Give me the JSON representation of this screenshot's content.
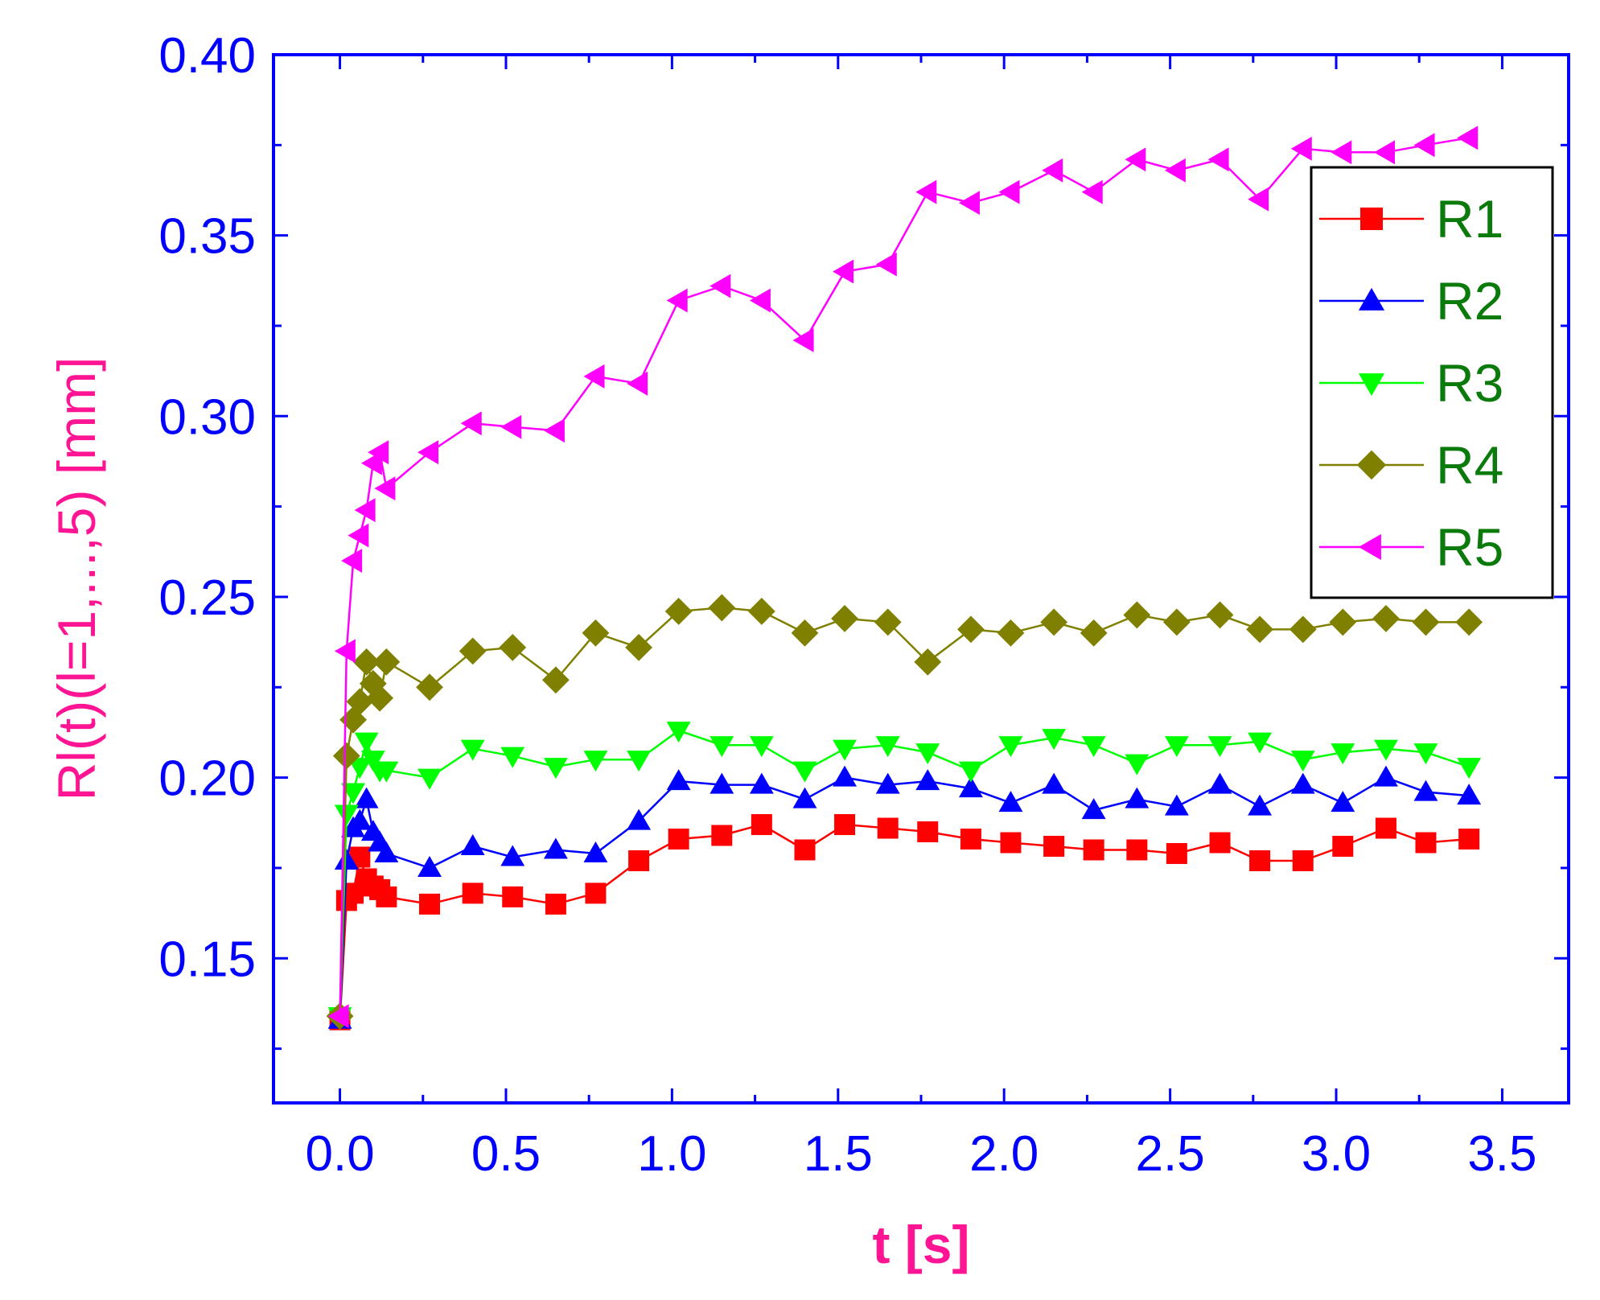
{
  "chart_data": {
    "type": "line",
    "xlabel": "t [s]",
    "ylabel": "Rl(t)(l=1,...,5) [mm]",
    "xlim": [
      -0.2,
      3.7
    ],
    "ylim": [
      0.11,
      0.4
    ],
    "xticks": [
      "0.0",
      "0.5",
      "1.0",
      "1.5",
      "2.0",
      "2.5",
      "3.0",
      "3.5"
    ],
    "yticks": [
      "0.15",
      "0.20",
      "0.25",
      "0.30",
      "0.35",
      "0.40"
    ],
    "grid": false,
    "legend_position": "top-right",
    "x": [
      0.0,
      0.02,
      0.04,
      0.06,
      0.08,
      0.1,
      0.12,
      0.14,
      0.27,
      0.4,
      0.52,
      0.65,
      0.77,
      0.9,
      1.02,
      1.15,
      1.27,
      1.4,
      1.52,
      1.65,
      1.77,
      1.9,
      2.02,
      2.15,
      2.27,
      2.4,
      2.52,
      2.65,
      2.77,
      2.9,
      3.02,
      3.15,
      3.27,
      3.4
    ],
    "series": [
      {
        "name": "R1",
        "color": "#ff0000",
        "marker": "square",
        "values": [
          0.133,
          0.166,
          0.168,
          0.178,
          0.172,
          0.17,
          0.169,
          0.167,
          0.165,
          0.168,
          0.167,
          0.165,
          0.168,
          0.177,
          0.183,
          0.184,
          0.187,
          0.18,
          0.187,
          0.186,
          0.185,
          0.183,
          0.182,
          0.181,
          0.18,
          0.18,
          0.179,
          0.182,
          0.177,
          0.177,
          0.181,
          0.186,
          0.182,
          0.183
        ]
      },
      {
        "name": "R2",
        "color": "#0000ff",
        "marker": "triangle-up",
        "values": [
          0.133,
          0.177,
          0.186,
          0.188,
          0.194,
          0.185,
          0.182,
          0.179,
          0.175,
          0.181,
          0.178,
          0.18,
          0.179,
          0.188,
          0.199,
          0.198,
          0.198,
          0.194,
          0.2,
          0.198,
          0.199,
          0.197,
          0.193,
          0.198,
          0.191,
          0.194,
          0.192,
          0.198,
          0.192,
          0.198,
          0.193,
          0.2,
          0.196,
          0.195
        ]
      },
      {
        "name": "R3",
        "color": "#00ff00",
        "marker": "triangle-down",
        "values": [
          0.134,
          0.19,
          0.196,
          0.203,
          0.21,
          0.205,
          0.202,
          0.202,
          0.2,
          0.208,
          0.206,
          0.203,
          0.205,
          0.205,
          0.213,
          0.209,
          0.209,
          0.202,
          0.208,
          0.209,
          0.207,
          0.202,
          0.209,
          0.211,
          0.209,
          0.204,
          0.209,
          0.209,
          0.21,
          0.205,
          0.207,
          0.208,
          0.207,
          0.203
        ]
      },
      {
        "name": "R4",
        "color": "#808000",
        "marker": "diamond",
        "values": [
          0.134,
          0.206,
          0.216,
          0.221,
          0.232,
          0.226,
          0.222,
          0.232,
          0.225,
          0.235,
          0.236,
          0.227,
          0.24,
          0.236,
          0.246,
          0.247,
          0.246,
          0.24,
          0.244,
          0.243,
          0.232,
          0.241,
          0.24,
          0.243,
          0.24,
          0.245,
          0.243,
          0.245,
          0.241,
          0.241,
          0.243,
          0.244,
          0.243,
          0.243
        ]
      },
      {
        "name": "R5",
        "color": "#ff00ff",
        "marker": "triangle-left",
        "values": [
          0.134,
          0.235,
          0.26,
          0.267,
          0.274,
          0.287,
          0.29,
          0.28,
          0.29,
          0.298,
          0.297,
          0.296,
          0.311,
          0.309,
          0.332,
          0.336,
          0.332,
          0.321,
          0.34,
          0.342,
          0.362,
          0.359,
          0.362,
          0.368,
          0.362,
          0.371,
          0.368,
          0.371,
          0.36,
          0.374,
          0.373,
          0.373,
          0.375,
          0.377
        ]
      }
    ]
  }
}
